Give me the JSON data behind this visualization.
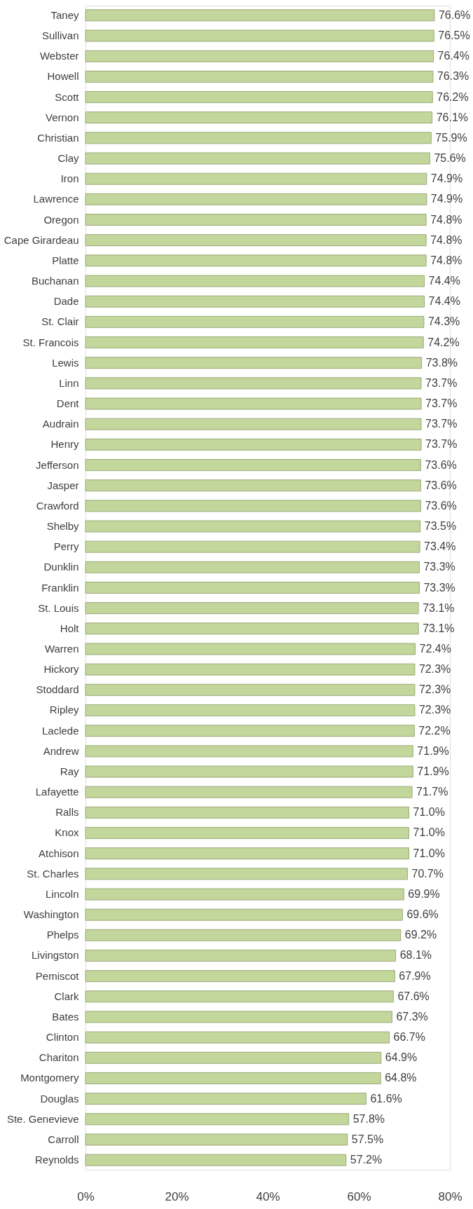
{
  "chart_data": {
    "type": "bar",
    "orientation": "horizontal",
    "categories": [
      "Taney",
      "Sullivan",
      "Webster",
      "Howell",
      "Scott",
      "Vernon",
      "Christian",
      "Clay",
      "Iron",
      "Lawrence",
      "Oregon",
      "Cape Girardeau",
      "Platte",
      "Buchanan",
      "Dade",
      "St. Clair",
      "St. Francois",
      "Lewis",
      "Linn",
      "Dent",
      "Audrain",
      "Henry",
      "Jefferson",
      "Jasper",
      "Crawford",
      "Shelby",
      "Perry",
      "Dunklin",
      "Franklin",
      "St. Louis",
      "Holt",
      "Warren",
      "Hickory",
      "Stoddard",
      "Ripley",
      "Laclede",
      "Andrew",
      "Ray",
      "Lafayette",
      "Ralls",
      "Knox",
      "Atchison",
      "St. Charles",
      "Lincoln",
      "Washington",
      "Phelps",
      "Livingston",
      "Pemiscot",
      "Clark",
      "Bates",
      "Clinton",
      "Chariton",
      "Montgomery",
      "Douglas",
      "Ste. Genevieve",
      "Carroll",
      "Reynolds"
    ],
    "values": [
      76.6,
      76.5,
      76.4,
      76.3,
      76.2,
      76.1,
      75.9,
      75.6,
      74.9,
      74.9,
      74.8,
      74.8,
      74.8,
      74.4,
      74.4,
      74.3,
      74.2,
      73.8,
      73.7,
      73.7,
      73.7,
      73.7,
      73.6,
      73.6,
      73.6,
      73.5,
      73.4,
      73.3,
      73.3,
      73.1,
      73.1,
      72.4,
      72.3,
      72.3,
      72.3,
      72.2,
      71.9,
      71.9,
      71.7,
      71.0,
      71.0,
      71.0,
      70.7,
      69.9,
      69.6,
      69.2,
      68.1,
      67.9,
      67.6,
      67.3,
      66.7,
      64.9,
      64.8,
      61.6,
      57.8,
      57.5,
      57.2
    ],
    "value_labels": [
      "76.6%",
      "76.5%",
      "76.4%",
      "76.3%",
      "76.2%",
      "76.1%",
      "75.9%",
      "75.6%",
      "74.9%",
      "74.9%",
      "74.8%",
      "74.8%",
      "74.8%",
      "74.4%",
      "74.4%",
      "74.3%",
      "74.2%",
      "73.8%",
      "73.7%",
      "73.7%",
      "73.7%",
      "73.7%",
      "73.6%",
      "73.6%",
      "73.6%",
      "73.5%",
      "73.4%",
      "73.3%",
      "73.3%",
      "73.1%",
      "73.1%",
      "72.4%",
      "72.3%",
      "72.3%",
      "72.3%",
      "72.2%",
      "71.9%",
      "71.9%",
      "71.7%",
      "71.0%",
      "71.0%",
      "71.0%",
      "70.7%",
      "69.9%",
      "69.6%",
      "69.2%",
      "68.1%",
      "67.9%",
      "67.6%",
      "67.3%",
      "66.7%",
      "64.9%",
      "64.8%",
      "61.6%",
      "57.8%",
      "57.5%",
      "57.2%"
    ],
    "color": "#c3d69b",
    "xlim": [
      0,
      80
    ],
    "xticks": [
      {
        "value": 0,
        "label": "0%"
      },
      {
        "value": 20,
        "label": "20%"
      },
      {
        "value": 40,
        "label": "40%"
      },
      {
        "value": 60,
        "label": "60%"
      },
      {
        "value": 80,
        "label": "80%"
      }
    ],
    "grid": false
  }
}
